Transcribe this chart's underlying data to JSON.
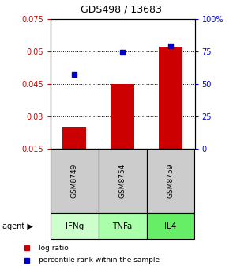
{
  "title": "GDS498 / 13683",
  "samples": [
    "GSM8749",
    "GSM8754",
    "GSM8759"
  ],
  "agents": [
    "IFNg",
    "TNFa",
    "IL4"
  ],
  "log_ratios": [
    0.025,
    0.045,
    0.062
  ],
  "percentile_ranks": [
    57,
    74,
    79
  ],
  "bar_baseline": 0.015,
  "ylim_left": [
    0.015,
    0.075
  ],
  "ylim_right": [
    0,
    100
  ],
  "yticks_left": [
    0.015,
    0.03,
    0.045,
    0.06,
    0.075
  ],
  "ytick_labels_left": [
    "0.015",
    "0.03",
    "0.045",
    "0.06",
    "0.075"
  ],
  "yticks_right": [
    0,
    25,
    50,
    75,
    100
  ],
  "ytick_labels_right": [
    "0",
    "25",
    "50",
    "75",
    "100%"
  ],
  "bar_color": "#cc0000",
  "square_color": "#0000cc",
  "gsm_box_color": "#cccccc",
  "agent_box_colors": [
    "#ccffcc",
    "#aaffaa",
    "#66ee66"
  ],
  "bar_width": 0.5,
  "legend_log_label": "log ratio",
  "legend_pct_label": "percentile rank within the sample"
}
